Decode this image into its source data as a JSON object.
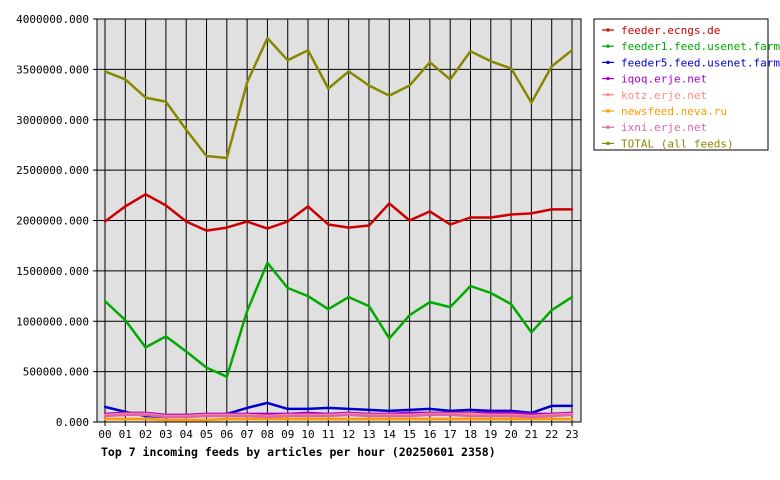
{
  "chart_data": {
    "type": "line",
    "title": "Top 7 incoming feeds by articles per hour (20250601 2358)",
    "xlabel": "",
    "ylabel": "",
    "ylim": [
      0,
      4000000
    ],
    "y_ticks": [
      0,
      500000,
      1000000,
      1500000,
      2000000,
      2500000,
      3000000,
      3500000,
      4000000
    ],
    "y_tick_labels": [
      "0.000",
      "500000.000",
      "1000000.000",
      "1500000.000",
      "2000000.000",
      "2500000.000",
      "3000000.000",
      "3500000.000",
      "4000000.000"
    ],
    "categories": [
      "00",
      "01",
      "02",
      "03",
      "04",
      "05",
      "06",
      "07",
      "08",
      "09",
      "10",
      "11",
      "12",
      "13",
      "14",
      "15",
      "16",
      "17",
      "18",
      "19",
      "20",
      "21",
      "22",
      "23"
    ],
    "grid": true,
    "legend_position": "right",
    "series": [
      {
        "name": "feeder.ecngs.de",
        "color": "#cc0000",
        "values": [
          1990000,
          2140000,
          2260000,
          2150000,
          1990000,
          1900000,
          1930000,
          1990000,
          1920000,
          1990000,
          2140000,
          1960000,
          1930000,
          1950000,
          2170000,
          2000000,
          2090000,
          1960000,
          2030000,
          2030000,
          2060000,
          2070000,
          2110000,
          2110000
        ]
      },
      {
        "name": "feeder1.feed.usenet.farm",
        "color": "#00aa00",
        "values": [
          1200000,
          1010000,
          740000,
          850000,
          700000,
          540000,
          450000,
          1100000,
          1580000,
          1330000,
          1250000,
          1120000,
          1240000,
          1150000,
          830000,
          1060000,
          1190000,
          1140000,
          1350000,
          1280000,
          1170000,
          890000,
          1110000,
          1240000
        ]
      },
      {
        "name": "feeder5.feed.usenet.farm",
        "color": "#0000cc",
        "values": [
          150000,
          100000,
          60000,
          50000,
          60000,
          70000,
          80000,
          140000,
          190000,
          130000,
          130000,
          140000,
          130000,
          120000,
          110000,
          120000,
          130000,
          110000,
          120000,
          110000,
          110000,
          90000,
          160000,
          160000
        ]
      },
      {
        "name": "iqoq.erje.net",
        "color": "#aa00cc",
        "values": [
          80000,
          90000,
          90000,
          70000,
          70000,
          80000,
          80000,
          80000,
          80000,
          80000,
          90000,
          80000,
          90000,
          80000,
          80000,
          90000,
          90000,
          90000,
          90000,
          90000,
          90000,
          80000,
          80000,
          90000
        ]
      },
      {
        "name": "kotz.erje.net",
        "color": "#ff8888",
        "values": [
          70000,
          80000,
          80000,
          60000,
          60000,
          70000,
          70000,
          70000,
          60000,
          70000,
          70000,
          70000,
          80000,
          70000,
          70000,
          70000,
          80000,
          80000,
          80000,
          70000,
          70000,
          60000,
          70000,
          80000
        ]
      },
      {
        "name": "newsfeed.neva.ru",
        "color": "#ff9900",
        "values": [
          30000,
          30000,
          30000,
          20000,
          20000,
          20000,
          30000,
          30000,
          30000,
          30000,
          30000,
          30000,
          30000,
          30000,
          30000,
          30000,
          30000,
          30000,
          30000,
          30000,
          30000,
          30000,
          30000,
          30000
        ]
      },
      {
        "name": "ixni.erje.net",
        "color": "#dd66aa",
        "values": [
          60000,
          70000,
          70000,
          50000,
          50000,
          60000,
          60000,
          60000,
          50000,
          60000,
          60000,
          60000,
          70000,
          60000,
          60000,
          60000,
          70000,
          70000,
          60000,
          60000,
          60000,
          50000,
          60000,
          70000
        ]
      },
      {
        "name": "TOTAL (all feeds)",
        "color": "#888800",
        "values": [
          3480000,
          3400000,
          3220000,
          3180000,
          2900000,
          2640000,
          2620000,
          3370000,
          3810000,
          3590000,
          3690000,
          3310000,
          3480000,
          3340000,
          3240000,
          3340000,
          3570000,
          3400000,
          3680000,
          3580000,
          3510000,
          3170000,
          3530000,
          3690000
        ]
      }
    ]
  }
}
